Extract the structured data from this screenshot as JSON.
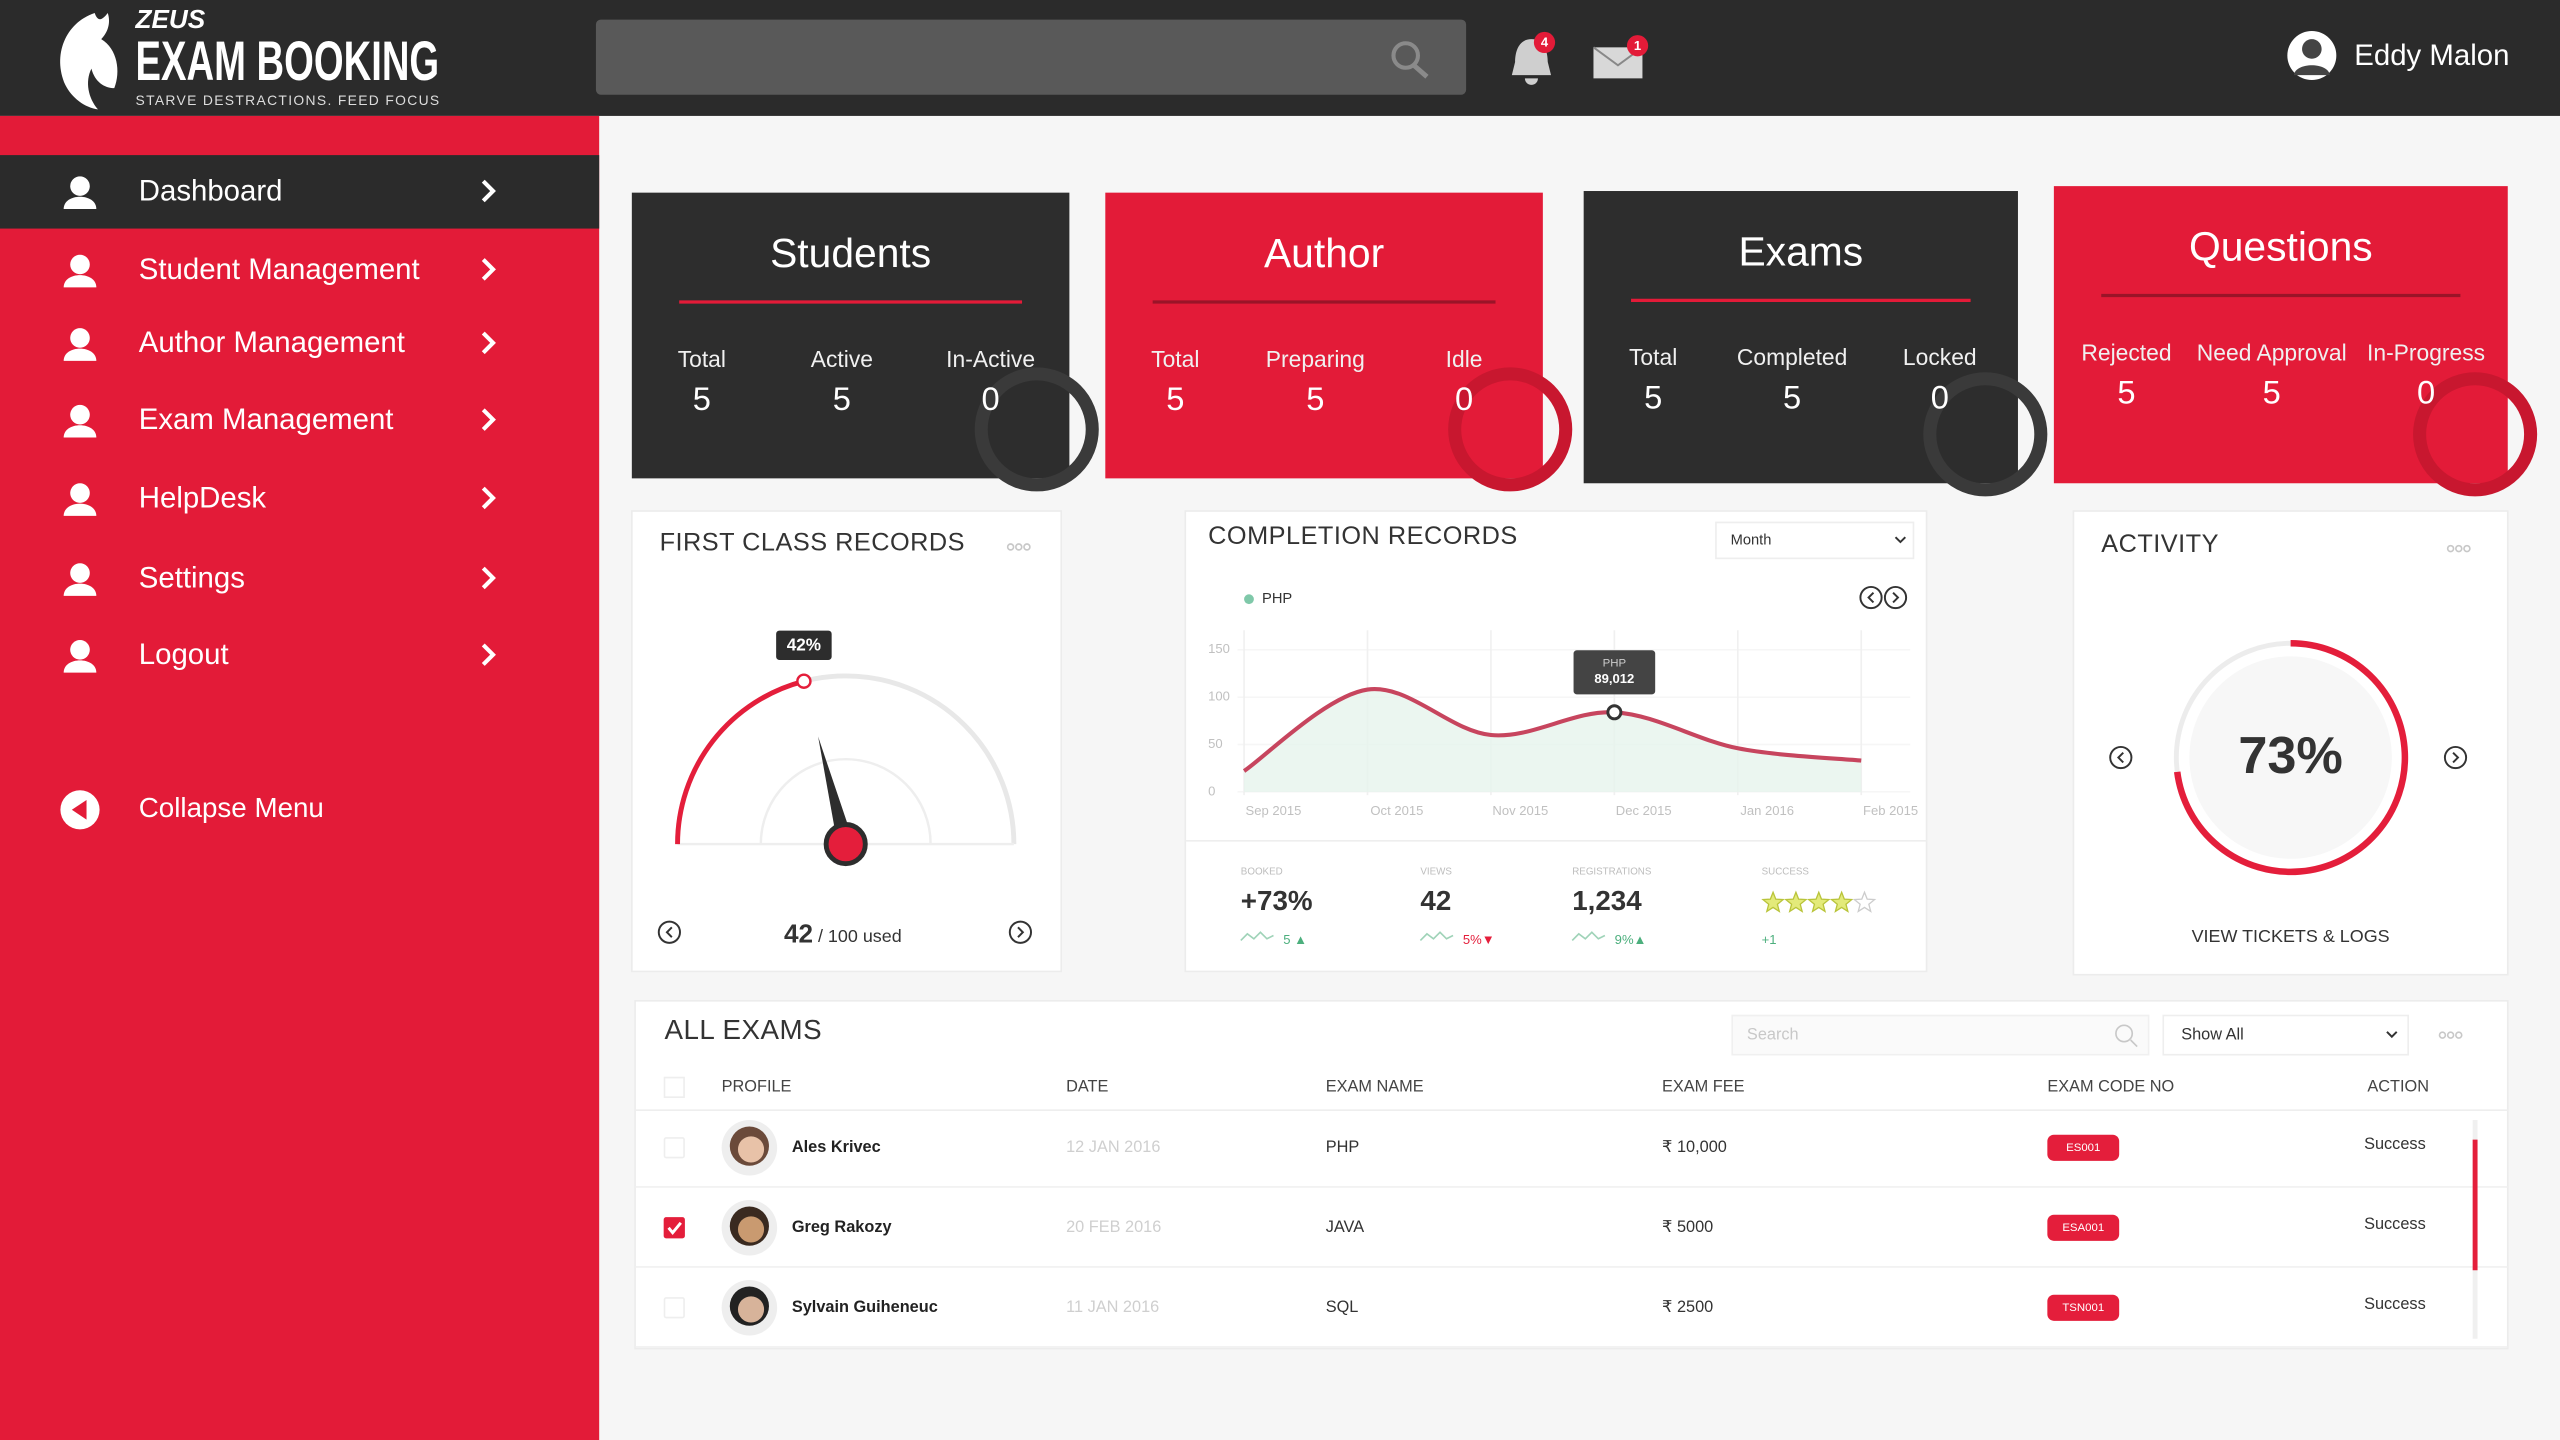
{
  "header": {
    "brand": "ZEUS",
    "title": "EXAM BOOKING",
    "tagline": "STARVE DESTRACTIONS. FEED FOCUS",
    "notification_count": "4",
    "message_count": "1",
    "user_name": "Eddy Malon"
  },
  "sidebar": {
    "menu": [
      "Dashboard",
      "Student Management",
      "Author Management",
      "Exam Management",
      "HelpDesk",
      "Settings",
      "Logout"
    ],
    "collapse": "Collapse Menu"
  },
  "stat_cards": [
    {
      "title": "Students",
      "color": "#2d2d2d",
      "metrics": [
        {
          "label": "Total",
          "value": 5
        },
        {
          "label": "Active",
          "value": 5
        },
        {
          "label": "In-Active",
          "value": 0
        }
      ]
    },
    {
      "title": "Author",
      "color": "#e31b38",
      "metrics": [
        {
          "label": "Total",
          "value": 5
        },
        {
          "label": "Preparing",
          "value": 5
        },
        {
          "label": "Idle",
          "value": 0
        }
      ]
    },
    {
      "title": "Exams",
      "color": "#2d2d2d",
      "metrics": [
        {
          "label": "Total",
          "value": 5
        },
        {
          "label": "Completed",
          "value": 5
        },
        {
          "label": "Locked",
          "value": 0
        }
      ]
    },
    {
      "title": "Questions",
      "color": "#e31b38",
      "metrics": [
        {
          "label": "Rejected",
          "value": 5
        },
        {
          "label": "Need Approval",
          "value": 5
        },
        {
          "label": "In-Progress",
          "value": 0
        }
      ]
    }
  ],
  "first_class_records": {
    "title": "FIRST CLASS RECORDS",
    "gauge": {
      "value": 42,
      "label": "42%"
    },
    "used": 42,
    "used_suffix": "/ 100 used"
  },
  "completion_records": {
    "title": "COMPLETION RECORDS",
    "period": "Month",
    "series_name": "PHP",
    "color": "#c7455e",
    "ylim": [
      0,
      150
    ],
    "yticks": [
      0,
      50,
      100,
      150
    ],
    "x": [
      "Sep 2015",
      "Oct 2015",
      "Nov 2015",
      "Dec 2015",
      "Jan 2016",
      "Feb 2015"
    ],
    "values": [
      22,
      108,
      60,
      84,
      46,
      33
    ],
    "tooltip": {
      "name": "PHP",
      "value": "89,012"
    },
    "stats": [
      {
        "label": "BOOKED",
        "value": "+73%",
        "change": "5 ▲",
        "change_color": "#4caf7d"
      },
      {
        "label": "VIEWS",
        "value": "42",
        "change": "5%▼",
        "change_color": "#e41e3b"
      },
      {
        "label": "REGISTRATIONS",
        "value": "1,234",
        "change": "9%▲",
        "change_color": "#4caf7d"
      },
      {
        "label": "SUCCESS",
        "rating": 4,
        "rating_max": 5,
        "change": "+1",
        "change_color": "#4caf7d"
      }
    ]
  },
  "activity": {
    "title": "ACTIVITY",
    "percent": {
      "value": 73,
      "label": "73%"
    },
    "link": "VIEW TICKETS & LOGS"
  },
  "all_exams": {
    "title": "ALL EXAMS",
    "search_placeholder": "Search",
    "filter": "Show All",
    "columns": [
      "PROFILE",
      "DATE",
      "EXAM NAME",
      "EXAM FEE",
      "EXAM CODE NO",
      "ACTION"
    ],
    "rows": [
      {
        "name": "Ales Krivec",
        "date": "12 JAN 2016",
        "exam": "PHP",
        "fee": "₹ 10,000",
        "code": "ES001",
        "action": "Success",
        "checked": false
      },
      {
        "name": "Greg Rakozy",
        "date": "20 FEB 2016",
        "exam": "JAVA",
        "fee": "₹ 5000",
        "code": "ESA001",
        "action": "Success",
        "checked": true
      },
      {
        "name": "Sylvain Guiheneuc",
        "date": "11 JAN 2016",
        "exam": "SQL",
        "fee": "₹ 2500",
        "code": "TSN001",
        "action": "Success",
        "checked": false
      }
    ]
  }
}
